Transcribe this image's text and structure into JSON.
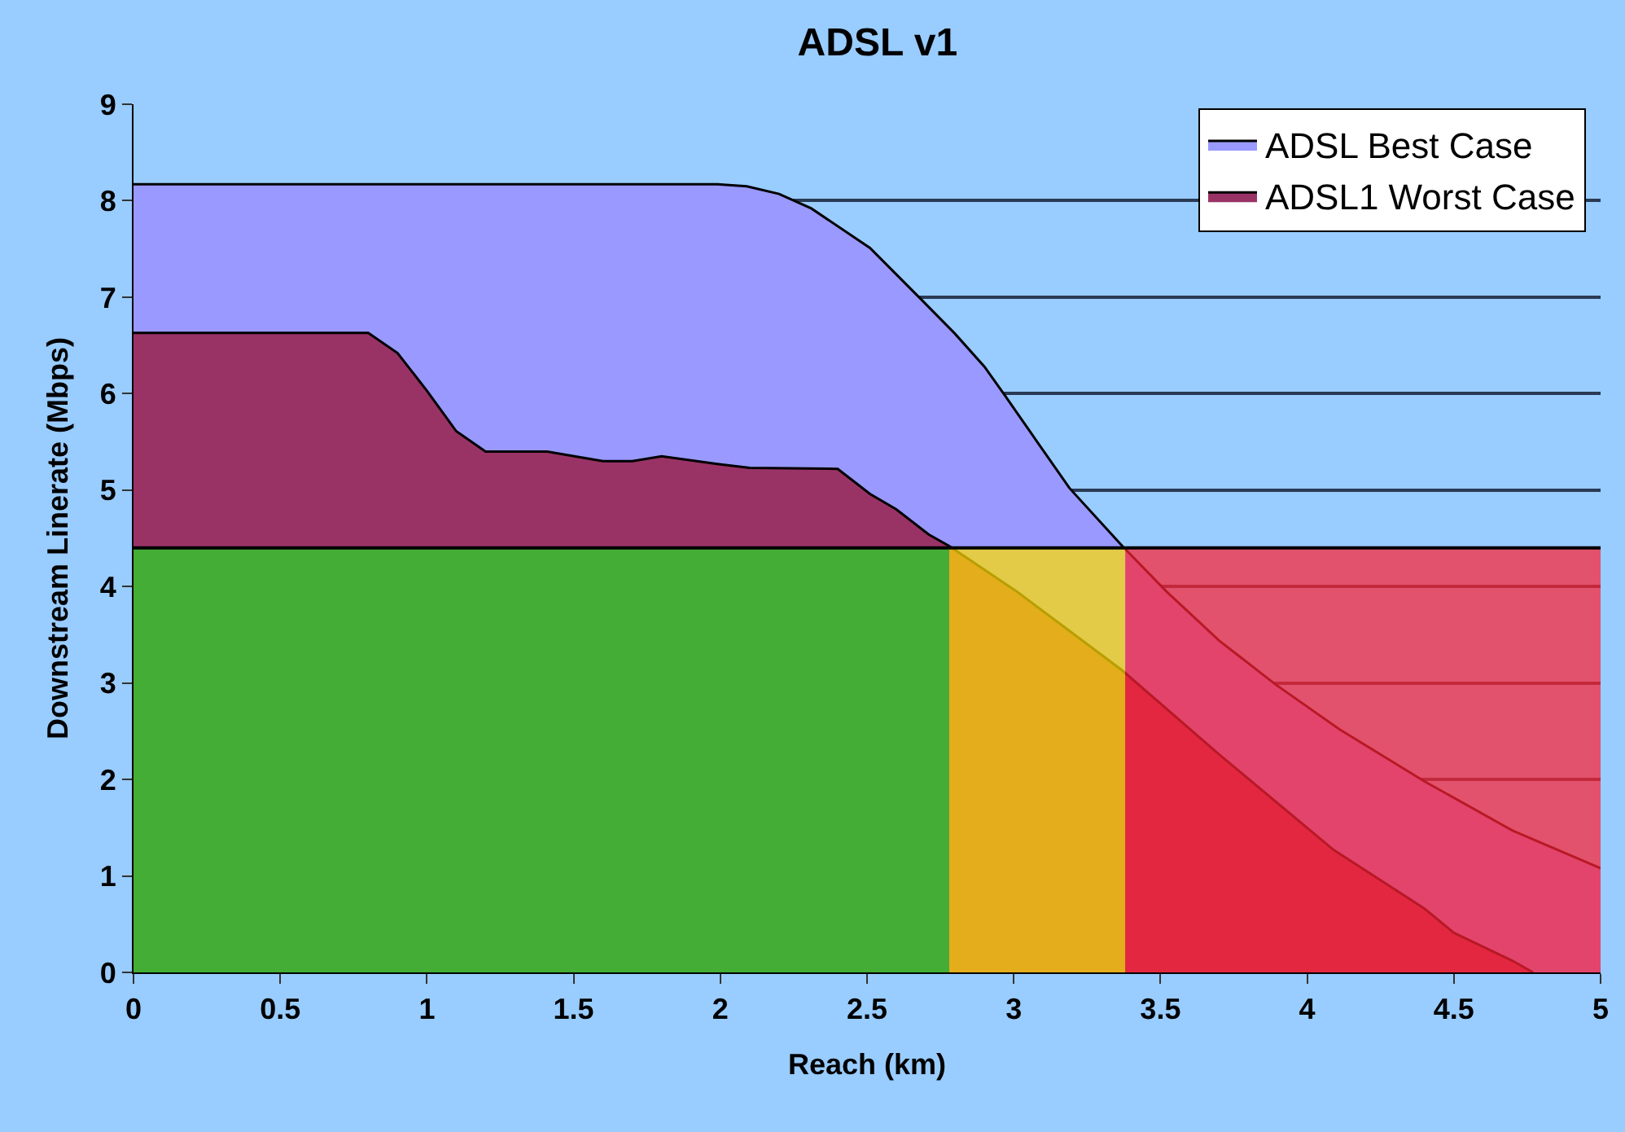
{
  "chart_data": {
    "type": "area",
    "title": "ADSL v1",
    "xlabel": "Reach (km)",
    "ylabel": "Downstream Linerate (Mbps)",
    "xlim": [
      0,
      5
    ],
    "xticks": [
      0,
      0.5,
      1,
      1.5,
      2,
      2.5,
      3,
      3.5,
      4,
      4.5,
      5
    ],
    "ylim": [
      0,
      9
    ],
    "yticks": [
      0,
      1,
      2,
      3,
      4,
      5,
      6,
      7,
      8,
      9
    ],
    "grid": "y",
    "legend": "top right",
    "series": [
      {
        "name": "ADSL Best Case",
        "color": "#9999ff",
        "x": [
          0,
          1.99,
          2.09,
          2.2,
          2.31,
          2.51,
          2.69,
          2.8,
          2.9,
          2.97,
          3.19,
          3.37,
          3.52,
          3.7,
          3.89,
          4.11,
          4.4,
          4.7,
          5
        ],
        "values": [
          8.17,
          8.17,
          8.15,
          8.07,
          7.92,
          7.51,
          6.96,
          6.62,
          6.28,
          5.98,
          5.02,
          4.42,
          3.95,
          3.44,
          2.99,
          2.52,
          1.98,
          1.47,
          1.08
        ]
      },
      {
        "name": "ADSL1 Worst Case",
        "color": "#993366",
        "x": [
          0,
          0.8,
          0.9,
          1.0,
          1.1,
          1.2,
          1.41,
          1.6,
          1.7,
          1.8,
          1.99,
          2.1,
          2.4,
          2.51,
          2.6,
          2.71,
          2.78,
          3.01,
          3.37,
          3.7,
          4.09,
          4.4,
          4.5,
          4.7,
          4.77
        ],
        "values": [
          6.63,
          6.63,
          6.42,
          6.03,
          5.61,
          5.4,
          5.4,
          5.3,
          5.3,
          5.35,
          5.27,
          5.23,
          5.22,
          4.96,
          4.8,
          4.54,
          4.42,
          3.95,
          3.13,
          2.26,
          1.27,
          0.66,
          0.41,
          0.12,
          0
        ]
      },
      {
        "color": "#22dd22",
        "x": [
          0,
          2.78
        ],
        "values": [
          4.4,
          4.4
        ]
      },
      {
        "color": "#ffdd00",
        "x": [
          2.78,
          3.38
        ],
        "values": [
          4.4,
          4.4
        ]
      },
      {
        "color": "#ff2233",
        "x": [
          3.38,
          5
        ],
        "values": [
          4.4,
          4.4
        ]
      }
    ]
  }
}
